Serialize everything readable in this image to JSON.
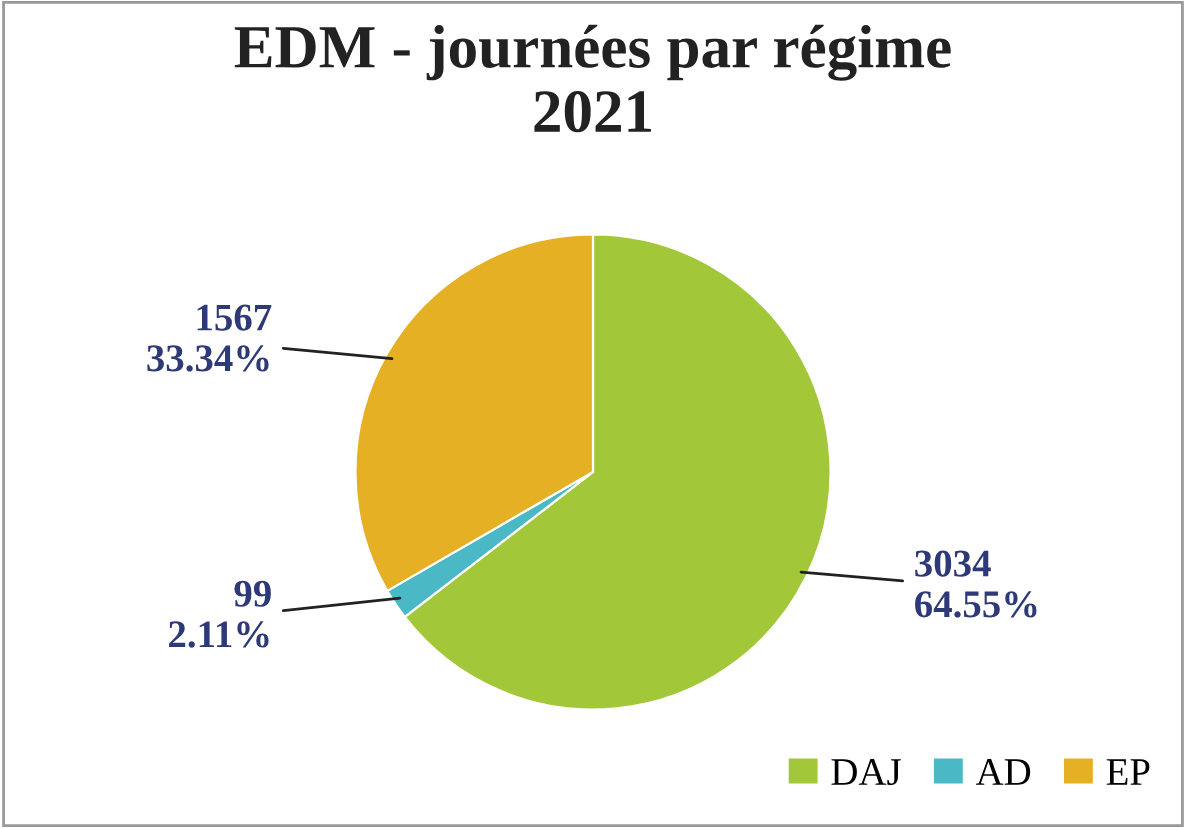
{
  "chart_data": {
    "type": "pie",
    "title": "EDM - journées par régime\n2021",
    "categories": [
      "DAJ",
      "AD",
      "EP"
    ],
    "values": [
      3034,
      99,
      1567
    ],
    "colors": [
      "#a2c83a",
      "#4bb8c6",
      "#e5b024"
    ],
    "value_labels": [
      "3034\n64.55%",
      "99\n2.11%",
      "1567\n33.34%"
    ],
    "legend": "bottom right"
  }
}
